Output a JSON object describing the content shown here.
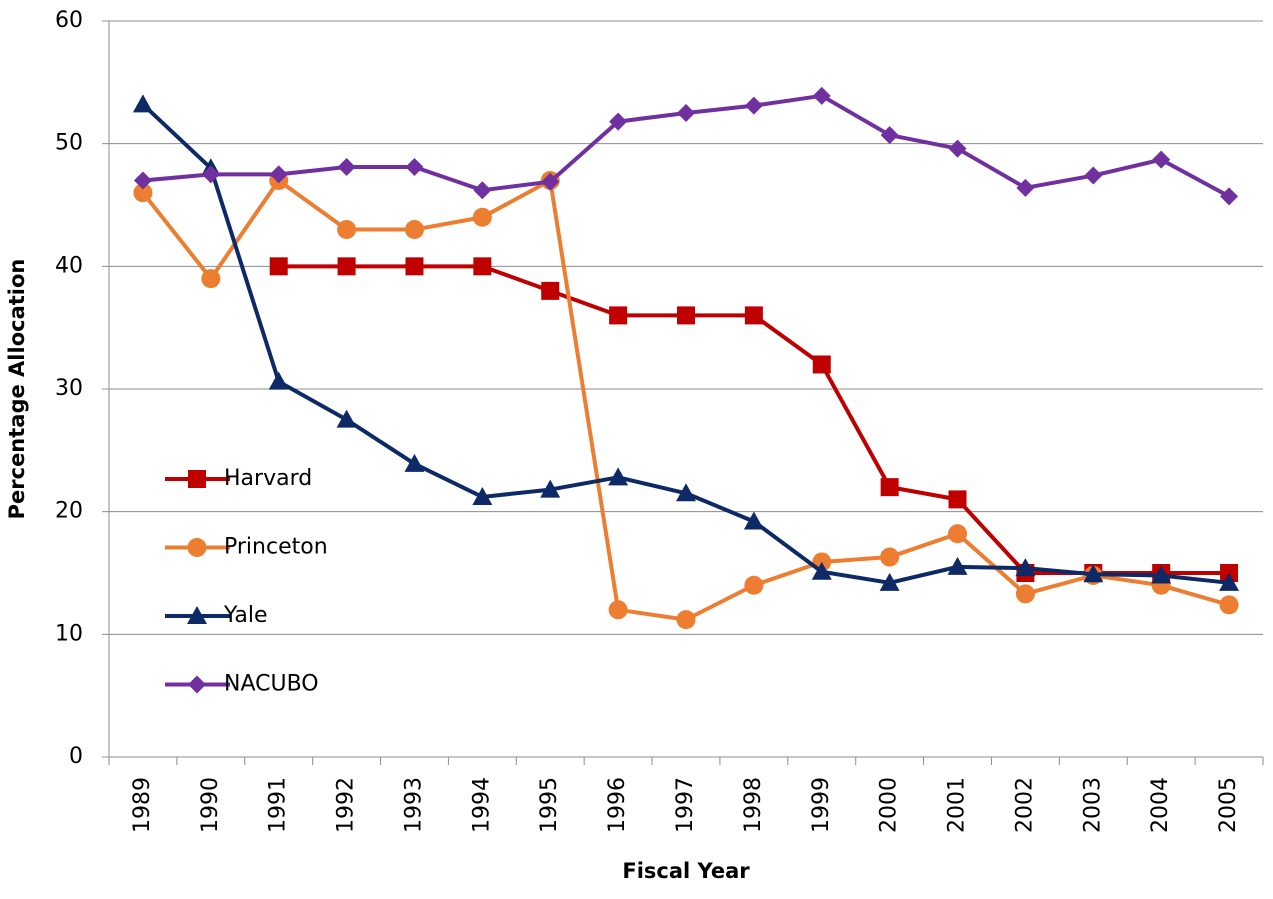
{
  "chart_data": {
    "type": "line",
    "x_label": "Fiscal Year",
    "y_label": "Percentage Allocation",
    "categories": [
      "1989",
      "1990",
      "1991",
      "1992",
      "1993",
      "1994",
      "1995",
      "1996",
      "1997",
      "1998",
      "1999",
      "2000",
      "2001",
      "2002",
      "2003",
      "2004",
      "2005"
    ],
    "series": [
      {
        "name": "Harvard",
        "color": "#c00000",
        "marker": "square",
        "values": [
          null,
          null,
          40,
          40,
          40,
          40,
          38,
          36,
          36,
          36,
          32,
          22,
          21,
          15,
          15,
          15,
          15
        ]
      },
      {
        "name": "Princeton",
        "color": "#ed7d31",
        "marker": "circle",
        "values": [
          46,
          39,
          47,
          43,
          43,
          44,
          47,
          12,
          11.2,
          14,
          15.9,
          16.3,
          18.2,
          13.3,
          14.8,
          14,
          12.4
        ]
      },
      {
        "name": "Yale",
        "color": "#0d2a66",
        "marker": "triangle",
        "values": [
          53.2,
          48,
          30.6,
          27.5,
          23.9,
          21.2,
          21.8,
          22.8,
          21.5,
          19.2,
          15.1,
          14.2,
          15.5,
          15.4,
          14.9,
          14.8,
          14.2
        ]
      },
      {
        "name": "NACUBO",
        "color": "#7030a0",
        "marker": "diamond",
        "values": [
          47,
          47.5,
          47.5,
          48.1,
          48.1,
          46.2,
          46.9,
          51.8,
          52.5,
          53.1,
          53.9,
          50.7,
          49.6,
          46.4,
          47.4,
          48.7,
          45.7
        ]
      }
    ],
    "ylim": [
      0,
      60
    ],
    "yticks": [
      0,
      10,
      20,
      30,
      40,
      50,
      60
    ],
    "grid": true,
    "legend": "left"
  }
}
